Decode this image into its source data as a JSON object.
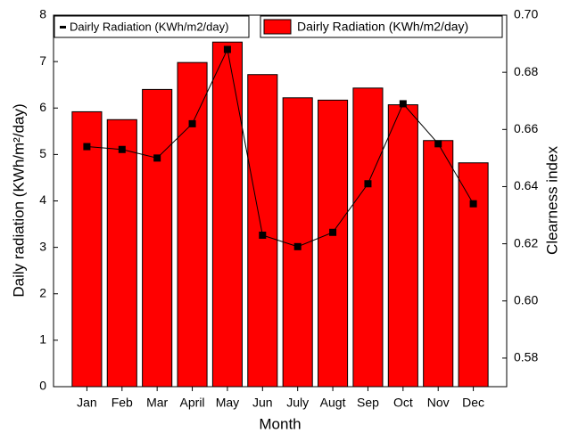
{
  "chart_data": {
    "type": "bar",
    "categories": [
      "Jan",
      "Feb",
      "Mar",
      "April",
      "May",
      "Jun",
      "July",
      "Augt",
      "Sep",
      "Oct",
      "Nov",
      "Dec"
    ],
    "series": [
      {
        "name": "Dairly Radiation (KWh/m2/day)",
        "type": "bar",
        "color": "#ff0000",
        "values": [
          5.92,
          5.75,
          6.4,
          6.98,
          7.42,
          6.72,
          6.22,
          6.17,
          6.43,
          6.07,
          5.3,
          4.82
        ]
      },
      {
        "name": "Dairly Radiation (KWh/m2/day)",
        "type": "line",
        "axis": "y2",
        "color": "#000000",
        "values": [
          0.654,
          0.653,
          0.65,
          0.662,
          0.688,
          0.623,
          0.619,
          0.624,
          0.641,
          0.669,
          0.655,
          0.634
        ]
      }
    ],
    "xlabel": "Month",
    "ylabel": "Daily radiation (KWh/m²/day)",
    "y2label": "Clearness index",
    "ylim": [
      0,
      8
    ],
    "yticks": [
      0,
      1,
      2,
      3,
      4,
      5,
      6,
      7,
      8
    ],
    "y2lim": [
      0.57,
      0.7
    ],
    "y2ticks": [
      0.58,
      {
        "value": 0.6,
        "label": "0.60"
      },
      0.62,
      0.64,
      0.66,
      0.68,
      {
        "value": 0.7,
        "label": "0.70"
      }
    ]
  }
}
